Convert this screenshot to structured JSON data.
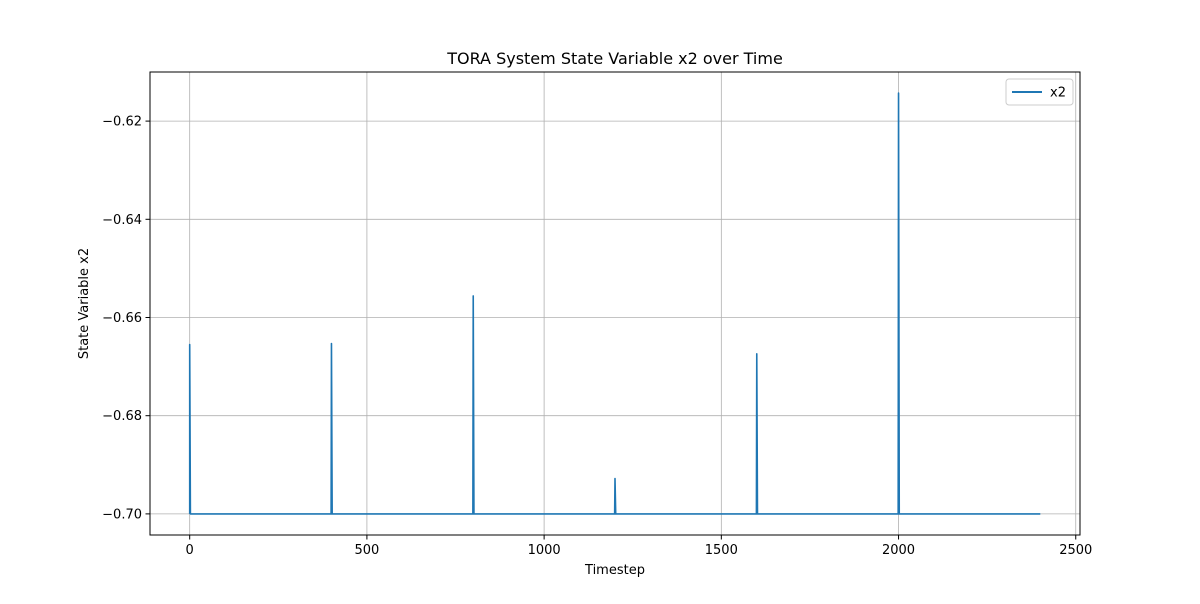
{
  "chart_data": {
    "type": "line",
    "title": "TORA System State Variable x2 over Time",
    "xlabel": "Timestep",
    "ylabel": "State Variable x2",
    "xlim": [
      -112,
      2512
    ],
    "ylim": [
      -0.7043,
      -0.61
    ],
    "xticks": [
      0,
      500,
      1000,
      1500,
      2000,
      2500
    ],
    "xtick_labels": [
      "0",
      "500",
      "1000",
      "1500",
      "2000",
      "2500"
    ],
    "yticks": [
      -0.7,
      -0.68,
      -0.66,
      -0.64,
      -0.62
    ],
    "ytick_labels": [
      "−0.70",
      "−0.68",
      "−0.66",
      "−0.64",
      "−0.62"
    ],
    "grid": true,
    "legend_position": "top-right",
    "series": [
      {
        "name": "x2",
        "color": "#1f77b4",
        "x": [
          0,
          0,
          2,
          399,
          400,
          402,
          799,
          800,
          802,
          1199,
          1200,
          1202,
          1599,
          1600,
          1602,
          1999,
          2000,
          2002,
          2400
        ],
        "y": [
          -0.7,
          -0.6655,
          -0.7,
          -0.7,
          -0.6653,
          -0.7,
          -0.7,
          -0.6556,
          -0.7,
          -0.7,
          -0.6928,
          -0.7,
          -0.7,
          -0.6674,
          -0.7,
          -0.7,
          -0.6143,
          -0.7,
          -0.7
        ]
      }
    ]
  }
}
